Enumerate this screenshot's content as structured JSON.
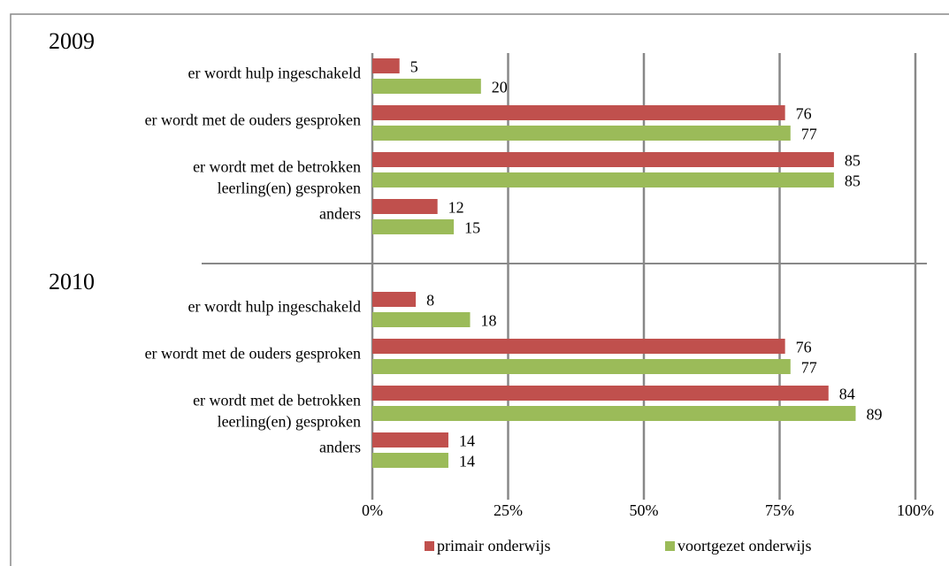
{
  "chart_data": {
    "type": "bar",
    "orientation": "horizontal",
    "groups": [
      {
        "name": "2009",
        "categories": [
          "er wordt hulp ingeschakeld",
          "er wordt met de ouders gesproken",
          [
            "er wordt met de betrokken",
            "leerling(en) gesproken"
          ],
          "anders"
        ]
      },
      {
        "name": "2010",
        "categories": [
          "er wordt hulp ingeschakeld",
          "er wordt met de ouders gesproken",
          [
            "er wordt met de betrokken",
            "leerling(en) gesproken"
          ],
          "anders"
        ]
      }
    ],
    "series": [
      {
        "name": "primair onderwijs",
        "color": "#c0504d",
        "values": [
          5,
          76,
          85,
          12,
          8,
          76,
          84,
          14
        ]
      },
      {
        "name": "voortgezet onderwijs",
        "color": "#9bbb59",
        "values": [
          20,
          77,
          85,
          15,
          18,
          77,
          89,
          14
        ]
      }
    ],
    "xlim": [
      0,
      100
    ],
    "xticks": [
      {
        "value": 0,
        "label": "0%"
      },
      {
        "value": 25,
        "label": "25%"
      },
      {
        "value": 50,
        "label": "50%"
      },
      {
        "value": 75,
        "label": "75%"
      },
      {
        "value": 100,
        "label": "100%"
      }
    ],
    "grid": true,
    "legend": "bottom"
  }
}
